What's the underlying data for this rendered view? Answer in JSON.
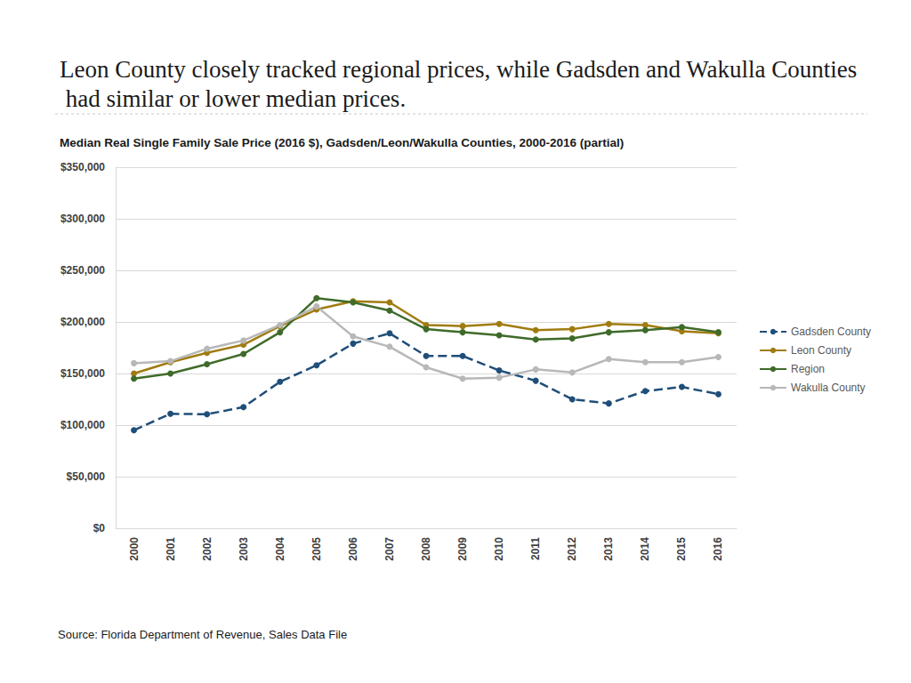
{
  "chart_data": {
    "type": "line",
    "title": "Leon County closely tracked regional prices, while Gadsden and Wakulla Counties had similar or lower median prices.",
    "subtitle": "Median Real Single Family Sale Price (2016 $), Gadsden/Leon/Wakulla Counties, 2000-2016 (partial)",
    "source": "Source: Florida Department of Revenue, Sales Data File",
    "categories": [
      "2000",
      "2001",
      "2002",
      "2003",
      "2004",
      "2005",
      "2006",
      "2007",
      "2008",
      "2009",
      "2010",
      "2011",
      "2012",
      "2013",
      "2014",
      "2015",
      "2016"
    ],
    "series": [
      {
        "name": "Gadsden County",
        "color": "#1f4e79",
        "line_style": "dashed",
        "marker": "circle",
        "values": [
          95000,
          111000,
          110500,
          117500,
          142000,
          158000,
          179000,
          189000,
          167000,
          167000,
          153000,
          143000,
          125000,
          121000,
          133000,
          137000,
          130000
        ]
      },
      {
        "name": "Leon County",
        "color": "#a07c10",
        "line_style": "solid",
        "marker": "circle",
        "values": [
          150000,
          161000,
          170000,
          178000,
          196000,
          212000,
          220000,
          219000,
          197000,
          196000,
          198000,
          192000,
          193000,
          198000,
          197000,
          191000,
          189000
        ]
      },
      {
        "name": "Region",
        "color": "#3f6b2a",
        "line_style": "solid",
        "marker": "circle",
        "values": [
          145000,
          150000,
          159000,
          169000,
          190000,
          223000,
          219000,
          211000,
          193000,
          190000,
          187000,
          183000,
          184000,
          190000,
          192000,
          195000,
          190000
        ]
      },
      {
        "name": "Wakulla County",
        "color": "#b8b8b8",
        "line_style": "solid",
        "marker": "circle",
        "values": [
          160000,
          162000,
          174000,
          182000,
          197000,
          215000,
          186000,
          176000,
          156000,
          145000,
          146000,
          154000,
          151000,
          164000,
          161000,
          161000,
          166000
        ]
      }
    ],
    "ylim": [
      0,
      350000
    ],
    "yticks": [
      {
        "value": 0,
        "label": "$0"
      },
      {
        "value": 50000,
        "label": "$50,000"
      },
      {
        "value": 100000,
        "label": "$100,000"
      },
      {
        "value": 150000,
        "label": "$150,000"
      },
      {
        "value": 200000,
        "label": "$200,000"
      },
      {
        "value": 250000,
        "label": "$250,000"
      },
      {
        "value": 300000,
        "label": "$300,000"
      },
      {
        "value": 350000,
        "label": "$350,000"
      }
    ],
    "grid": true,
    "legend": "right"
  }
}
